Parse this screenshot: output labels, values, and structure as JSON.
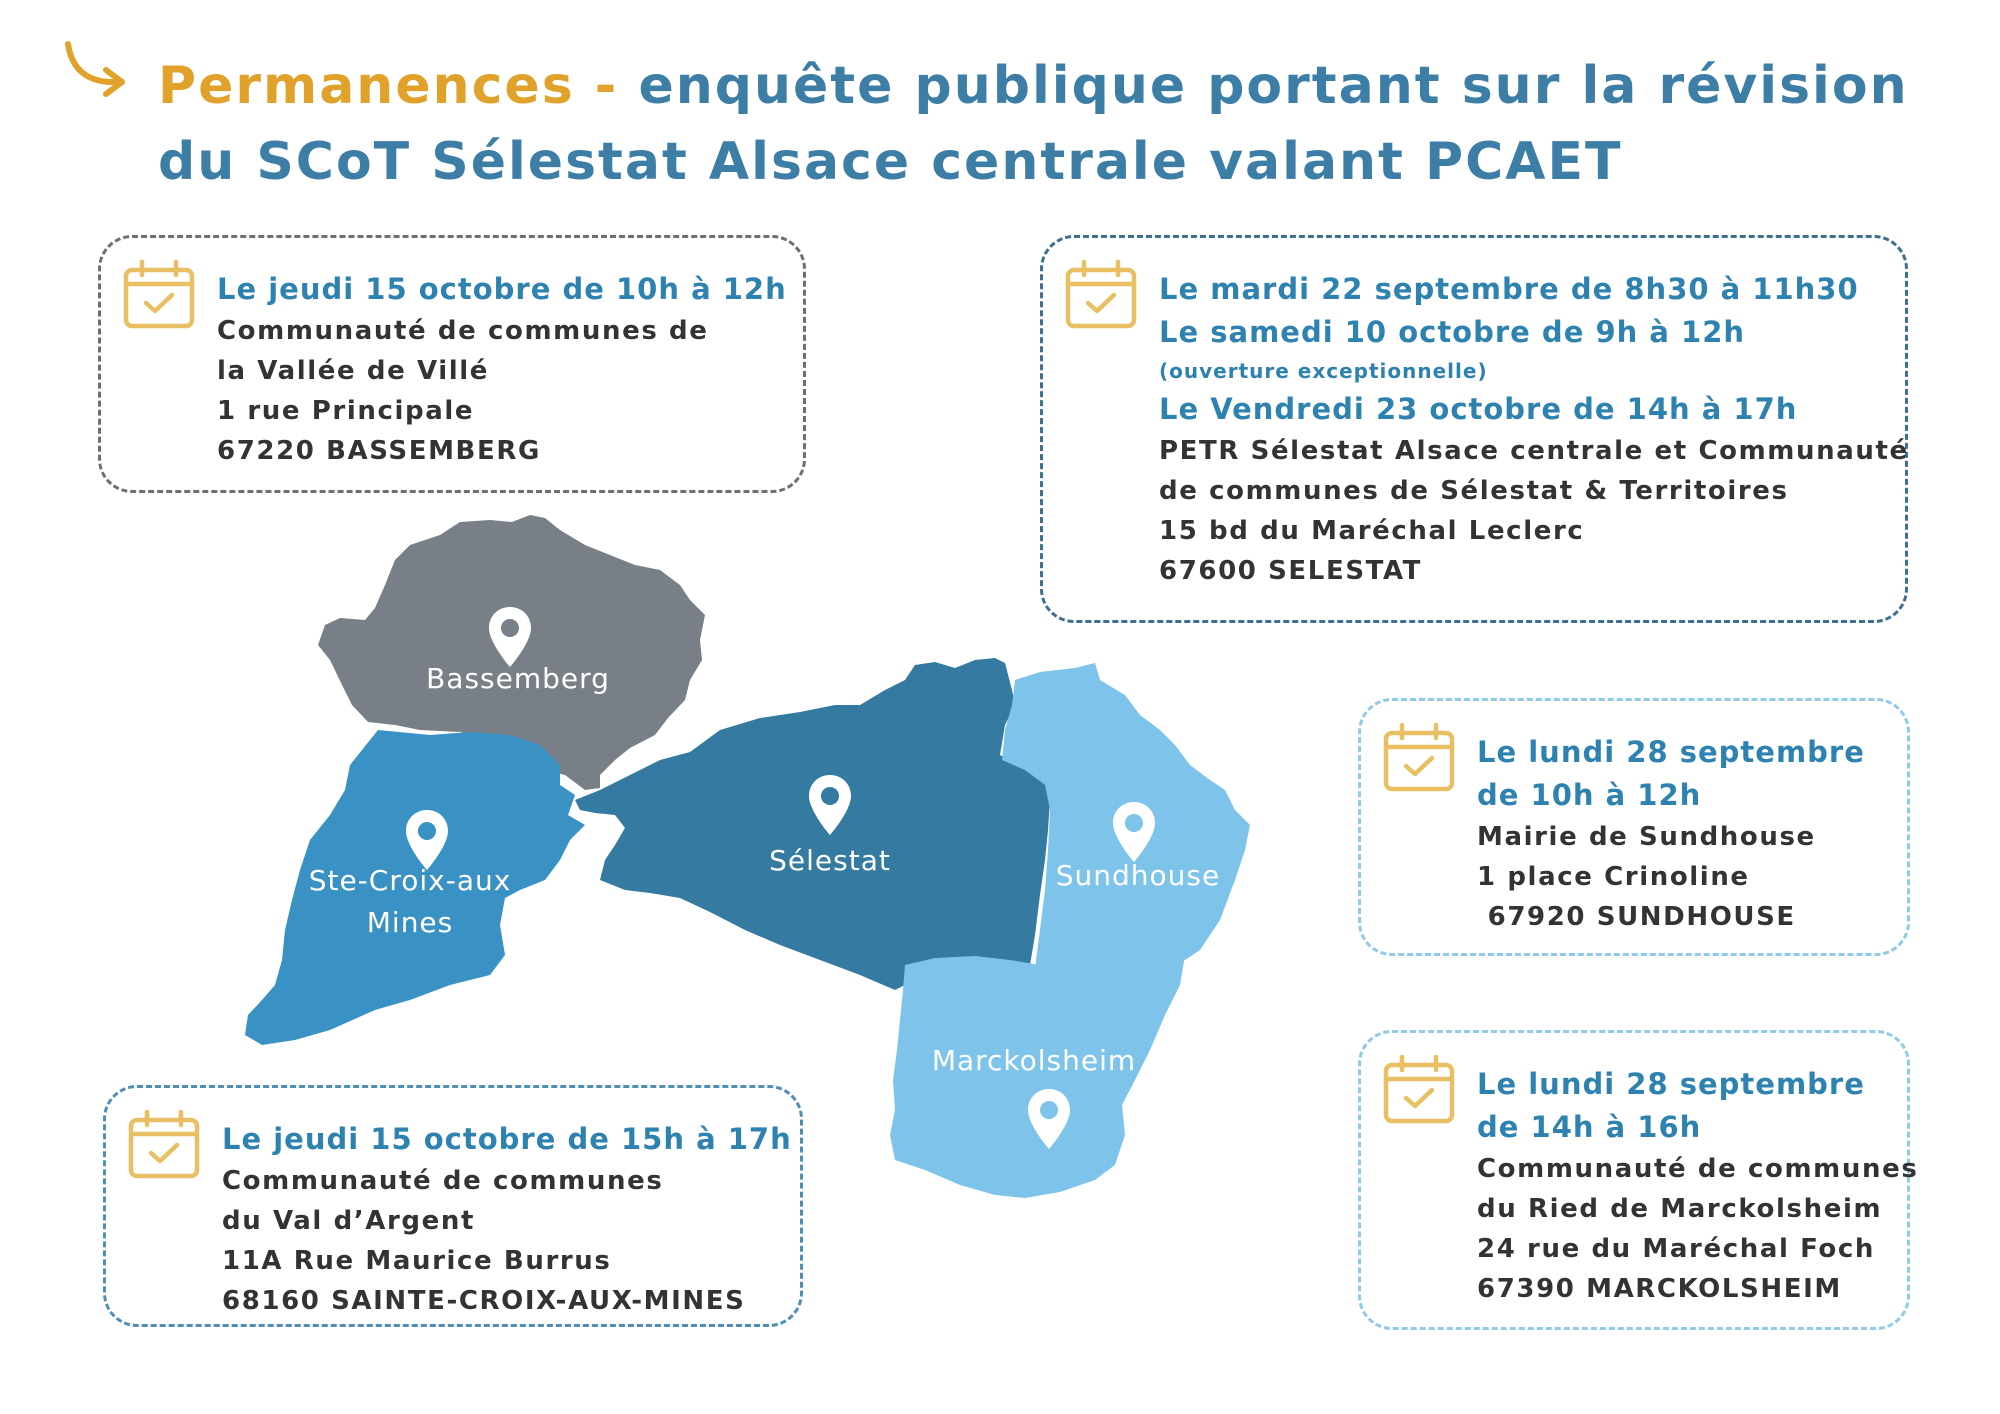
{
  "header": {
    "title_accent": "Permanences -",
    "title_rest": "enquête publique portant sur la révision du SCoT Sélestat Alsace centrale valant PCAET"
  },
  "colors": {
    "accent_yellow": "#e0a22a",
    "title_blue": "#3d7ea6",
    "bassemberg_gray": "#787f87",
    "ste_croix_blue": "#3a91c3",
    "selestat_blue": "#357aa0",
    "sundhouse_light_blue": "#7ec4ea",
    "marckolsheim_light_blue": "#7ec4ea"
  },
  "icons": {
    "header": "curved-arrow-icon",
    "card": "calendar-check-icon",
    "map": "map-pin-icon"
  },
  "map": {
    "regions": [
      {
        "name": "Bassemberg"
      },
      {
        "name": "Ste-Croix-aux-Mines",
        "line1": "Ste-Croix-aux",
        "line2": "Mines"
      },
      {
        "name": "Sélestat"
      },
      {
        "name": "Sundhouse"
      },
      {
        "name": "Marckolsheim"
      }
    ]
  },
  "cards": [
    {
      "id": "bassemberg",
      "dates": [
        "Le jeudi 15 octobre de 10h à 12h"
      ],
      "address": [
        "Communauté de communes de",
        "la Vallée de Villé",
        "1 rue Principale",
        "67220 BASSEMBERG"
      ]
    },
    {
      "id": "selestat",
      "date1": "Le mardi 22 septembre de 8h30 à 11h30",
      "date2": "Le samedi 10 octobre de 9h à 12h",
      "note": "(ouverture exceptionnelle)",
      "date3": "Le Vendredi 23 octobre de 14h à 17h",
      "address": [
        "PETR Sélestat Alsace centrale et Communauté",
        "de communes de Sélestat & Territoires",
        "15 bd du Maréchal Leclerc",
        "67600 SELESTAT"
      ]
    },
    {
      "id": "sundhouse",
      "dates": [
        "Le lundi 28 septembre",
        "de 10h à 12h"
      ],
      "address": [
        "Mairie de Sundhouse",
        "1 place Crinoline",
        " 67920 SUNDHOUSE"
      ]
    },
    {
      "id": "marckolsheim",
      "dates": [
        "Le lundi 28 septembre",
        "de 14h à 16h"
      ],
      "address": [
        "Communauté de communes",
        "du Ried de Marckolsheim",
        "24 rue du Maréchal Foch",
        "67390 MARCKOLSHEIM"
      ]
    },
    {
      "id": "ste-croix",
      "dates": [
        "Le jeudi 15 octobre de 15h à 17h"
      ],
      "address": [
        "Communauté de communes",
        "du Val d’Argent",
        "11A Rue Maurice Burrus",
        "68160 SAINTE-CROIX-AUX-MINES"
      ]
    }
  ]
}
